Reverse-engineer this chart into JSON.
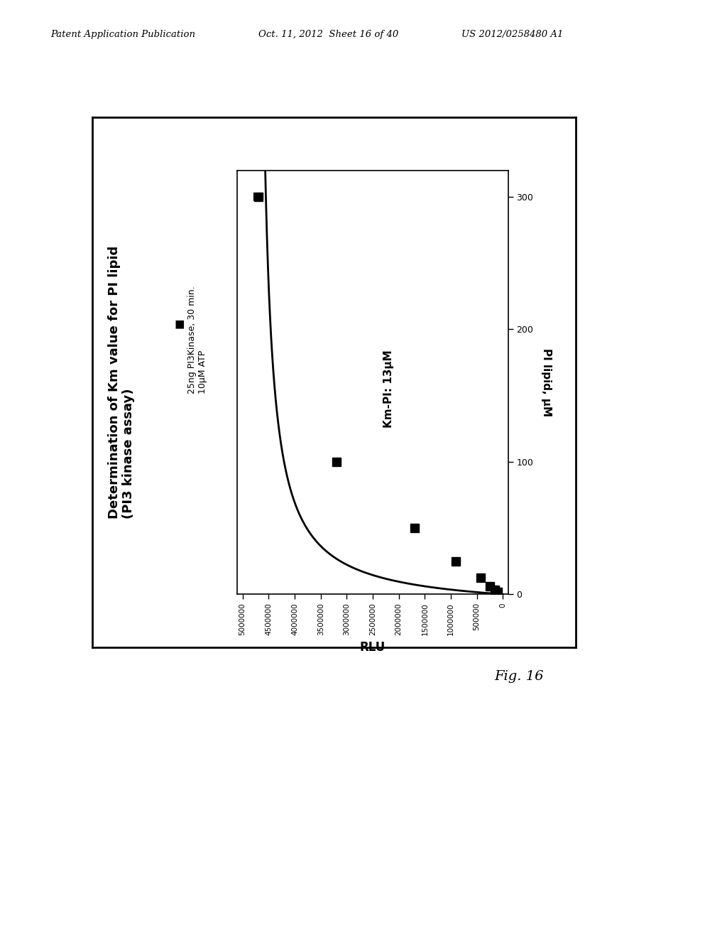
{
  "header_left": "Patent Application Publication",
  "header_mid": "Oct. 11, 2012  Sheet 16 of 40",
  "header_right": "US 2012/0258480 A1",
  "fig_label": "Fig. 16",
  "title_line1": "Determination of Km value for PI lipid",
  "title_line2": "(PI3 kinase assay)",
  "legend_marker_label": "25ng PI3Kinase, 30 min.",
  "legend_line2": "10μM ATP",
  "annotation": "Km-PI: 13μM",
  "xlabel": "RLU",
  "ylabel": "PI lipid, μM",
  "data_points_pi": [
    300,
    100,
    50,
    25,
    12.5,
    6.25,
    3.125,
    1.5625
  ],
  "data_points_rlu": [
    4700000,
    3200000,
    1700000,
    900000,
    430000,
    250000,
    150000,
    100000
  ],
  "data_points_err": [
    80000,
    60000,
    0,
    0,
    0,
    0,
    0,
    0
  ],
  "rlu_xlim": [
    5100000,
    -100000
  ],
  "pi_ylim": [
    0,
    320
  ],
  "rlu_ticks": [
    5000000,
    4500000,
    4000000,
    3500000,
    3000000,
    2500000,
    2000000,
    1500000,
    1000000,
    500000,
    0
  ],
  "pi_ticks": [
    0,
    100,
    200,
    300
  ],
  "km": 13,
  "vmax_rlu": 4750000,
  "background_color": "#ffffff"
}
